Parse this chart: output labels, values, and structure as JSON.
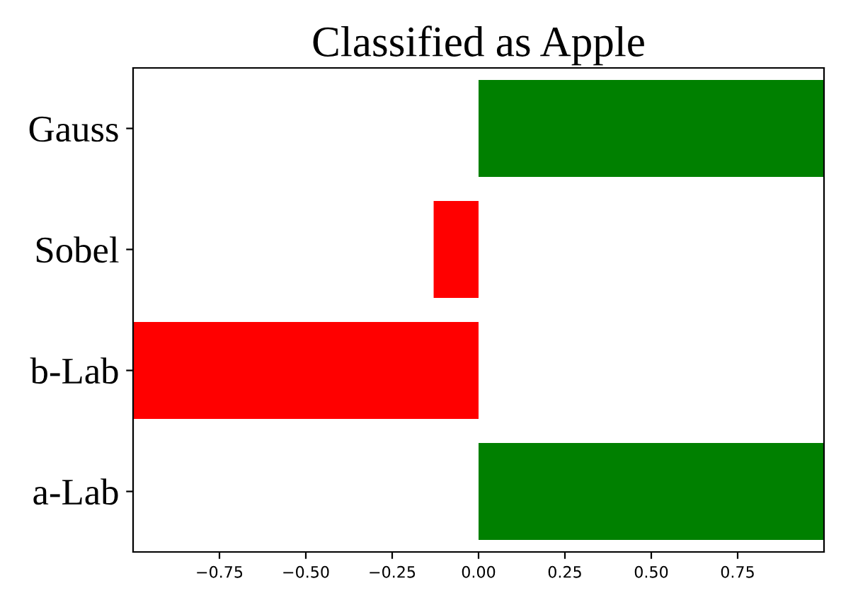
{
  "chart_data": {
    "type": "bar",
    "orientation": "horizontal",
    "title": "Classified as Apple",
    "categories": [
      "Gauss",
      "Sobel",
      "b-Lab",
      "a-Lab"
    ],
    "values": [
      1.0,
      -0.13,
      -1.0,
      1.0
    ],
    "colors": [
      "#008000",
      "#ff0000",
      "#ff0000",
      "#008000"
    ],
    "xlim": [
      -1.0,
      1.0
    ],
    "xticks": [
      {
        "value": -0.75,
        "label": "−0.75"
      },
      {
        "value": -0.5,
        "label": "−0.50"
      },
      {
        "value": -0.25,
        "label": "−0.25"
      },
      {
        "value": 0,
        "label": "0.00"
      },
      {
        "value": 0.25,
        "label": "0.25"
      },
      {
        "value": 0.5,
        "label": "0.50"
      },
      {
        "value": 0.75,
        "label": "0.75"
      }
    ],
    "grid": false,
    "legend": false
  }
}
